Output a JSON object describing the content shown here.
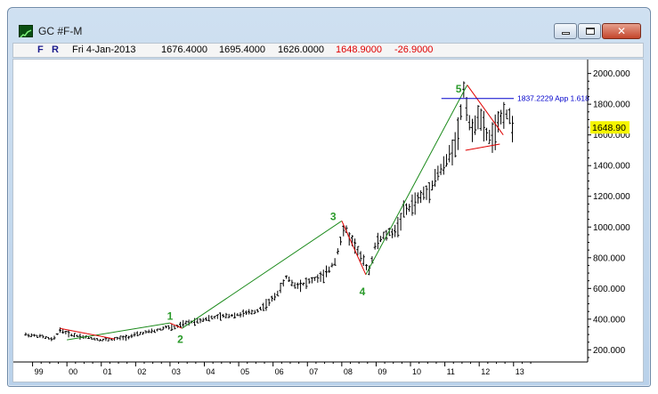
{
  "window": {
    "title": "GC #F-M",
    "close_glyph": "✕"
  },
  "infobar": {
    "f_label": "F",
    "r_label": "R",
    "date": "Fri 4-Jan-2013",
    "open": "1676.4000",
    "high": "1695.4000",
    "low": "1626.0000",
    "close": "1648.9000",
    "change": "-26.9000",
    "change_color": "#e00000",
    "close_color": "#e00000"
  },
  "chart_data": {
    "type": "line",
    "series_style": "ohlc-bars",
    "x_tick_labels": [
      "99",
      "00",
      "01",
      "02",
      "03",
      "04",
      "05",
      "06",
      "07",
      "08",
      "09",
      "10",
      "11",
      "12",
      "13"
    ],
    "y_tick_labels": [
      "2000.000",
      "1800.000",
      "1600.000",
      "1400.000",
      "1200.000",
      "1000.000",
      "800.000",
      "600.000",
      "400.000",
      "200.000"
    ],
    "ylim": [
      150,
      2050
    ],
    "last_price_label": "1648.90",
    "last_price": 1648.9,
    "last_price_bg": "#f5f500",
    "price_path": [
      [
        1998.8,
        300
      ],
      [
        1999.3,
        285
      ],
      [
        1999.6,
        265
      ],
      [
        1999.8,
        330
      ],
      [
        2000.1,
        300
      ],
      [
        2000.5,
        285
      ],
      [
        2001.0,
        265
      ],
      [
        2001.4,
        270
      ],
      [
        2001.8,
        285
      ],
      [
        2002.2,
        310
      ],
      [
        2002.6,
        325
      ],
      [
        2002.9,
        350
      ],
      [
        2003.1,
        340
      ],
      [
        2003.4,
        370
      ],
      [
        2003.8,
        390
      ],
      [
        2004.1,
        405
      ],
      [
        2004.6,
        420
      ],
      [
        2005.0,
        430
      ],
      [
        2005.5,
        450
      ],
      [
        2005.9,
        510
      ],
      [
        2006.2,
        590
      ],
      [
        2006.4,
        680
      ],
      [
        2006.6,
        620
      ],
      [
        2006.9,
        630
      ],
      [
        2007.2,
        660
      ],
      [
        2007.5,
        680
      ],
      [
        2007.8,
        780
      ],
      [
        2007.95,
        900
      ],
      [
        2008.1,
        1000
      ],
      [
        2008.2,
        940
      ],
      [
        2008.4,
        880
      ],
      [
        2008.6,
        780
      ],
      [
        2008.8,
        720
      ],
      [
        2009.0,
        900
      ],
      [
        2009.3,
        950
      ],
      [
        2009.6,
        980
      ],
      [
        2009.8,
        1100
      ],
      [
        2010.0,
        1130
      ],
      [
        2010.3,
        1200
      ],
      [
        2010.5,
        1230
      ],
      [
        2010.8,
        1350
      ],
      [
        2011.0,
        1400
      ],
      [
        2011.2,
        1500
      ],
      [
        2011.4,
        1620
      ],
      [
        2011.55,
        1900
      ],
      [
        2011.7,
        1700
      ],
      [
        2011.8,
        1600
      ],
      [
        2011.95,
        1750
      ],
      [
        2012.1,
        1650
      ],
      [
        2012.3,
        1580
      ],
      [
        2012.5,
        1620
      ],
      [
        2012.7,
        1760
      ],
      [
        2012.85,
        1720
      ],
      [
        2013.0,
        1650
      ]
    ],
    "wave_labels": [
      {
        "text": "1",
        "x": 2003.0,
        "y": 395
      },
      {
        "text": "2",
        "x": 2003.3,
        "y": 245
      },
      {
        "text": "3",
        "x": 2007.75,
        "y": 1045
      },
      {
        "text": "4",
        "x": 2008.6,
        "y": 555
      },
      {
        "text": "5",
        "x": 2011.4,
        "y": 1875
      }
    ],
    "wave_label_color": "#2a9a2a",
    "green_lines": [
      [
        [
          2000.0,
          265
        ],
        [
          2003.0,
          375
        ]
      ],
      [
        [
          2003.35,
          340
        ],
        [
          2008.0,
          1040
        ]
      ],
      [
        [
          2008.7,
          690
        ],
        [
          2011.65,
          1925
        ]
      ]
    ],
    "red_lines": [
      [
        [
          1999.8,
          340
        ],
        [
          2001.4,
          270
        ]
      ],
      [
        [
          2003.0,
          375
        ],
        [
          2003.35,
          340
        ]
      ],
      [
        [
          2008.0,
          1040
        ],
        [
          2008.7,
          690
        ]
      ],
      [
        [
          2011.65,
          1925
        ],
        [
          2012.7,
          1600
        ]
      ],
      [
        [
          2011.6,
          1500
        ],
        [
          2012.6,
          1540
        ]
      ]
    ],
    "target_line": {
      "y": 1837.2229,
      "x_from": 2010.9,
      "label": "1837.2229 App 1.618",
      "color": "#0000cc"
    }
  }
}
